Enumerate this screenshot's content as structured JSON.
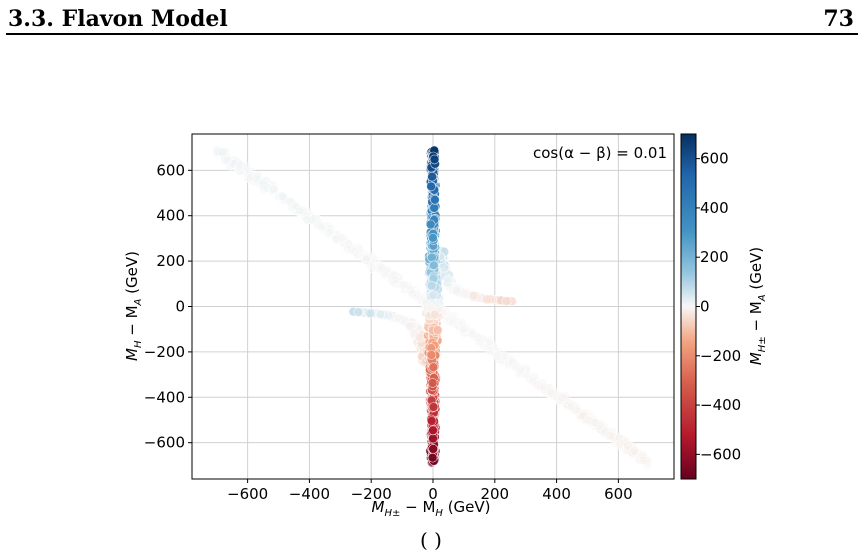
{
  "page": {
    "section_title": "3.3.  Flavon Model",
    "page_number": "73",
    "caption_fragment": "(                    )"
  },
  "chart_data": {
    "type": "scatter",
    "annotation": "cos(α − β) = 0.01",
    "xlabel_main": "M",
    "xlabel_sub1": "H±",
    "xlabel_sep": " − M",
    "xlabel_sub2": "H",
    "xlabel_unit": " (GeV)",
    "ylabel_main": "M",
    "ylabel_sub1": "H",
    "ylabel_sep": " − M",
    "ylabel_sub2": "A",
    "ylabel_unit": " (GeV)",
    "colorbar_label_main": "M",
    "colorbar_label_sub1": "H±",
    "colorbar_label_sep": " − M",
    "colorbar_label_sub2": "A",
    "colorbar_label_unit": " (GeV)",
    "xlim": [
      -780,
      780
    ],
    "ylim": [
      -760,
      760
    ],
    "clim": [
      -700,
      700
    ],
    "xticks": [
      -600,
      -400,
      -200,
      0,
      200,
      400,
      600
    ],
    "yticks": [
      -600,
      -400,
      -200,
      0,
      200,
      400,
      600
    ],
    "cticks": [
      600,
      400,
      200,
      0,
      -200,
      -400,
      -600
    ],
    "xtick_labels": [
      "−600",
      "−400",
      "−200",
      "0",
      "200",
      "400",
      "600"
    ],
    "ytick_labels": [
      "−600",
      "−400",
      "−200",
      "0",
      "200",
      "400",
      "600"
    ],
    "ctick_labels": [
      "600",
      "400",
      "200",
      "0",
      "−200",
      "−400",
      "−600"
    ],
    "grid": true,
    "colormap": "RdBu (red low, blue high)",
    "colors": {
      "low": "#67001f",
      "mid": "#f7f7f7",
      "high": "#053061"
    },
    "regions": [
      {
        "name": "vertical spine",
        "x": 0,
        "y_range": [
          -690,
          690
        ],
        "x_halfwidth": 12,
        "color_value": "equals y"
      },
      {
        "name": "diagonal band",
        "from": [
          -700,
          690
        ],
        "to": [
          700,
          -690
        ],
        "color_value": "near 0"
      },
      {
        "name": "hyperbolic wings",
        "description": "y ≈ ±6000/x near the origin"
      }
    ],
    "points": [
      [
        -700,
        690,
        0
      ],
      [
        -600,
        592,
        5
      ],
      [
        -500,
        494,
        10
      ],
      [
        -400,
        396,
        15
      ],
      [
        -300,
        300,
        30
      ],
      [
        -200,
        220,
        40
      ],
      [
        -150,
        150,
        30
      ],
      [
        -100,
        60,
        -20
      ],
      [
        -60,
        -40,
        -60
      ],
      [
        -30,
        -120,
        -120
      ],
      [
        0,
        -690,
        -690
      ],
      [
        0,
        -600,
        -600
      ],
      [
        0,
        -500,
        -500
      ],
      [
        0,
        -400,
        -400
      ],
      [
        0,
        -300,
        -300
      ],
      [
        0,
        -200,
        -200
      ],
      [
        0,
        -100,
        -100
      ],
      [
        0,
        0,
        0
      ],
      [
        0,
        100,
        100
      ],
      [
        0,
        200,
        200
      ],
      [
        0,
        300,
        300
      ],
      [
        0,
        400,
        400
      ],
      [
        0,
        500,
        500
      ],
      [
        0,
        600,
        600
      ],
      [
        0,
        690,
        690
      ],
      [
        30,
        120,
        120
      ],
      [
        60,
        40,
        60
      ],
      [
        100,
        -60,
        20
      ],
      [
        150,
        -150,
        -30
      ],
      [
        200,
        -220,
        -40
      ],
      [
        300,
        -300,
        -30
      ],
      [
        400,
        -396,
        -15
      ],
      [
        500,
        -494,
        -10
      ],
      [
        600,
        -592,
        -5
      ],
      [
        700,
        -690,
        0
      ]
    ]
  }
}
